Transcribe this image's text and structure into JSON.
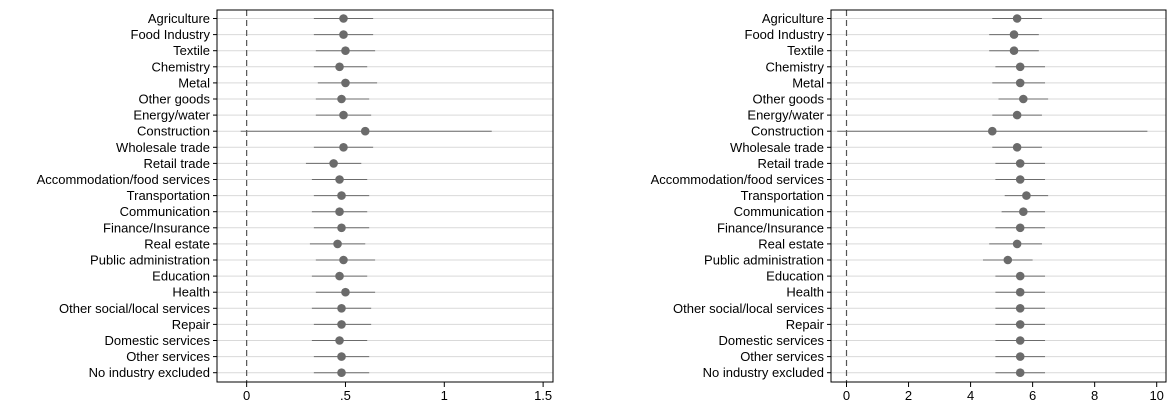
{
  "chart_data": [
    {
      "type": "coefficient-plot",
      "xlim": [
        -0.15,
        1.55
      ],
      "xticks": [
        0,
        0.5,
        1,
        1.5
      ],
      "xtick_labels": [
        "0",
        ".5",
        "1",
        "1.5"
      ],
      "reference_line": 0,
      "grid": true,
      "categories": [
        "Agriculture",
        "Food Industry",
        "Textile",
        "Chemistry",
        "Metal",
        "Other goods",
        "Energy/water",
        "Construction",
        "Wholesale trade",
        "Retail trade",
        "Accommodation/food services",
        "Transportation",
        "Communication",
        "Finance/Insurance",
        "Real estate",
        "Public administration",
        "Education",
        "Health",
        "Other social/local services",
        "Repair",
        "Domestic services",
        "Other services",
        "No industry excluded"
      ],
      "estimates": [
        0.49,
        0.49,
        0.5,
        0.47,
        0.5,
        0.48,
        0.49,
        0.6,
        0.49,
        0.44,
        0.47,
        0.48,
        0.47,
        0.48,
        0.46,
        0.49,
        0.47,
        0.5,
        0.48,
        0.48,
        0.47,
        0.48,
        0.48
      ],
      "ci_low": [
        0.34,
        0.34,
        0.35,
        0.34,
        0.36,
        0.35,
        0.35,
        -0.03,
        0.34,
        0.3,
        0.33,
        0.34,
        0.33,
        0.34,
        0.32,
        0.35,
        0.33,
        0.35,
        0.33,
        0.34,
        0.33,
        0.34,
        0.34
      ],
      "ci_high": [
        0.64,
        0.64,
        0.65,
        0.61,
        0.66,
        0.62,
        0.63,
        1.24,
        0.64,
        0.58,
        0.61,
        0.62,
        0.61,
        0.62,
        0.6,
        0.65,
        0.61,
        0.65,
        0.63,
        0.63,
        0.61,
        0.62,
        0.62
      ]
    },
    {
      "type": "coefficient-plot",
      "xlim": [
        -0.5,
        10.3
      ],
      "xticks": [
        0,
        2,
        4,
        6,
        8,
        10
      ],
      "xtick_labels": [
        "0",
        "2",
        "4",
        "6",
        "8",
        "10"
      ],
      "reference_line": 0,
      "grid": true,
      "categories": [
        "Agriculture",
        "Food Industry",
        "Textile",
        "Chemistry",
        "Metal",
        "Other goods",
        "Energy/water",
        "Construction",
        "Wholesale trade",
        "Retail trade",
        "Accommodation/food services",
        "Transportation",
        "Communication",
        "Finance/Insurance",
        "Real estate",
        "Public administration",
        "Education",
        "Health",
        "Other social/local services",
        "Repair",
        "Domestic services",
        "Other services",
        "No industry excluded"
      ],
      "estimates": [
        5.5,
        5.4,
        5.4,
        5.6,
        5.6,
        5.7,
        5.5,
        4.7,
        5.5,
        5.6,
        5.6,
        5.8,
        5.7,
        5.6,
        5.5,
        5.2,
        5.6,
        5.6,
        5.6,
        5.6,
        5.6,
        5.6,
        5.6
      ],
      "ci_low": [
        4.7,
        4.6,
        4.6,
        4.8,
        4.7,
        4.9,
        4.7,
        -0.3,
        4.7,
        4.8,
        4.8,
        5.1,
        5.0,
        4.8,
        4.6,
        4.4,
        4.8,
        4.8,
        4.8,
        4.8,
        4.8,
        4.8,
        4.8
      ],
      "ci_high": [
        6.3,
        6.2,
        6.2,
        6.4,
        6.4,
        6.5,
        6.3,
        9.7,
        6.3,
        6.4,
        6.4,
        6.5,
        6.4,
        6.4,
        6.3,
        6.0,
        6.4,
        6.4,
        6.4,
        6.4,
        6.4,
        6.4,
        6.4
      ]
    }
  ],
  "colors": {
    "point": "#6b6b6b",
    "ci_line": "#6b6b6b",
    "grid": "#d9d9d9",
    "reference": "#555555",
    "frame": "#000000"
  }
}
